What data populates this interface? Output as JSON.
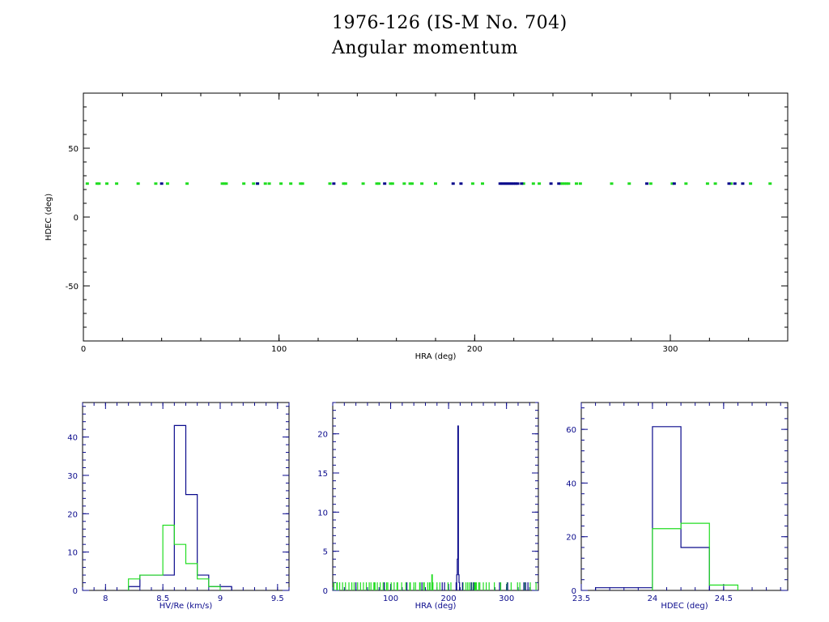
{
  "title_line1": "1976-126 (IS-M No. 704)",
  "title_line2": "Angular momentum",
  "colors": {
    "blue": "#0a0a8c",
    "green": "#22dd22",
    "axis": "#000000"
  },
  "chart_data": [
    {
      "id": "main",
      "type": "scatter",
      "xlabel": "HRA (deg)",
      "ylabel": "HDEC (deg)",
      "xlim": [
        0,
        360
      ],
      "ylim": [
        -90,
        90
      ],
      "xticks": [
        0,
        100,
        200,
        300
      ],
      "yticks": [
        -50,
        0,
        50
      ],
      "series": [
        {
          "color": "green",
          "x": [
            2,
            7,
            8,
            12,
            17,
            28,
            37,
            43,
            53,
            71,
            72,
            73,
            82,
            87,
            89,
            93,
            95,
            101,
            106,
            111,
            112,
            126,
            133,
            134,
            143,
            150,
            151,
            157,
            158,
            164,
            167,
            168,
            173,
            180,
            199,
            204,
            225,
            230,
            233,
            244,
            245,
            246,
            247,
            248,
            252,
            254,
            270,
            279,
            290,
            301,
            308,
            319,
            323,
            331,
            341,
            351
          ],
          "y": [
            24,
            24,
            24,
            24,
            24,
            24,
            24,
            24,
            24,
            24,
            24,
            24,
            24,
            24,
            24,
            24,
            24,
            24,
            24,
            24,
            24,
            24,
            24,
            24,
            24,
            24,
            24,
            24,
            24,
            24,
            24,
            24,
            24,
            24,
            24,
            24,
            24,
            24,
            24,
            24,
            24,
            24,
            24,
            24,
            24,
            24,
            24,
            24,
            24,
            24,
            24,
            24,
            24,
            24,
            24,
            24
          ]
        },
        {
          "color": "blue",
          "x": [
            40,
            89,
            128,
            154,
            189,
            193,
            213,
            214,
            215,
            216,
            217,
            218,
            219,
            220,
            221,
            222,
            224,
            239,
            243,
            288,
            302,
            330,
            333,
            337
          ],
          "y": [
            24,
            24,
            24,
            24,
            24,
            24,
            24,
            24,
            24,
            24,
            24,
            24,
            24,
            24,
            24,
            24,
            24,
            24,
            24,
            24,
            24,
            24,
            24,
            24
          ]
        }
      ]
    },
    {
      "id": "hist1",
      "type": "histogram",
      "xlabel": "HV/Re (km/s)",
      "xlim": [
        7.8,
        9.6
      ],
      "ylim": [
        0,
        49
      ],
      "xticks": [
        8,
        8.5,
        9,
        9.5
      ],
      "xtick_labels": [
        "8",
        "8.5",
        "9",
        "9.5"
      ],
      "yticks": [
        0,
        10,
        20,
        30,
        40
      ],
      "series": [
        {
          "color": "blue",
          "edges": [
            8.2,
            8.3,
            8.4,
            8.5,
            8.6,
            8.7,
            8.8,
            8.9,
            9.0,
            9.1
          ],
          "counts": [
            1,
            4,
            4,
            4,
            43,
            25,
            4,
            1,
            1
          ]
        },
        {
          "color": "green",
          "edges": [
            8.2,
            8.3,
            8.4,
            8.5,
            8.6,
            8.7,
            8.8,
            8.9,
            9.0
          ],
          "counts": [
            3,
            4,
            4,
            17,
            12,
            7,
            3,
            1
          ]
        }
      ]
    },
    {
      "id": "hist2",
      "type": "histogram",
      "xlabel": "HRA (deg)",
      "xlim": [
        0,
        355
      ],
      "ylim": [
        0,
        24
      ],
      "xticks": [
        100,
        200,
        300
      ],
      "xtick_labels": [
        "100",
        "200",
        "300"
      ],
      "yticks": [
        0,
        5,
        10,
        15,
        20
      ],
      "series": [
        {
          "color": "blue",
          "edges": [
            214,
            215,
            216,
            217,
            218,
            219
          ],
          "counts": [
            2,
            4,
            21,
            2,
            1
          ]
        },
        {
          "color": "green",
          "edges": [
            171,
            172
          ],
          "counts": [
            2
          ]
        }
      ],
      "rug": {
        "green": [
          2,
          7,
          8,
          12,
          17,
          22,
          28,
          33,
          37,
          43,
          48,
          53,
          58,
          63,
          66,
          71,
          72,
          73,
          77,
          82,
          87,
          89,
          93,
          95,
          101,
          106,
          111,
          112,
          119,
          126,
          133,
          134,
          140,
          143,
          150,
          151,
          157,
          158,
          164,
          167,
          168,
          173,
          180,
          185,
          199,
          204,
          225,
          230,
          233,
          236,
          240,
          244,
          245,
          246,
          247,
          248,
          252,
          254,
          260,
          265,
          270,
          279,
          290,
          301,
          308,
          319,
          323,
          331,
          341,
          351
        ],
        "blue": [
          40,
          89,
          128,
          154,
          189,
          193,
          213,
          224,
          239,
          243,
          288,
          302,
          330,
          333,
          337
        ]
      }
    },
    {
      "id": "hist3",
      "type": "histogram",
      "xlabel": "HDEC (deg)",
      "xlim": [
        23.5,
        24.95
      ],
      "ylim": [
        0,
        70
      ],
      "xticks": [
        23.5,
        24,
        24.5
      ],
      "xtick_labels": [
        "23.5",
        "24",
        "24.5"
      ],
      "yticks": [
        0,
        20,
        40,
        60
      ],
      "series": [
        {
          "color": "blue",
          "edges": [
            23.6,
            24.0,
            24.2,
            24.4
          ],
          "counts": [
            1,
            61,
            16
          ]
        },
        {
          "color": "green",
          "edges": [
            24.0,
            24.2,
            24.4,
            24.6
          ],
          "counts": [
            23,
            25,
            2
          ]
        }
      ]
    }
  ]
}
